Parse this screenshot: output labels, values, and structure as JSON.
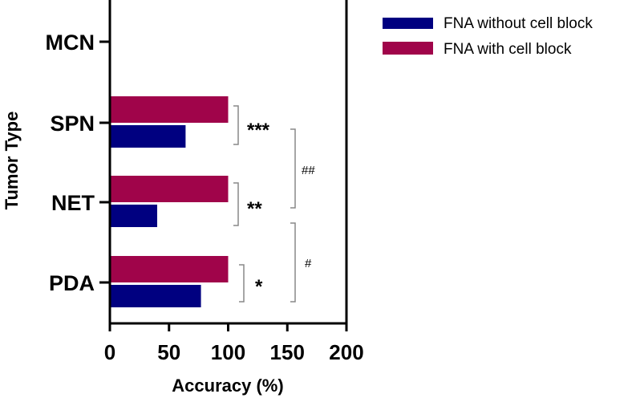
{
  "chart_data": {
    "type": "bar",
    "orientation": "horizontal",
    "categories": [
      "MCN",
      "SPN",
      "NET",
      "PDA"
    ],
    "series": [
      {
        "name": "FNA without cell block",
        "color": "#000080",
        "values": [
          null,
          64,
          40,
          77
        ]
      },
      {
        "name": "FNA with cell block",
        "color": "#A0044A",
        "values": [
          null,
          100,
          100,
          100
        ]
      }
    ],
    "xlabel": "Accuracy (%)",
    "ylabel": "Tumor Type",
    "xlim": [
      0,
      200
    ],
    "xticks": [
      "0",
      "50",
      "100",
      "150",
      "200"
    ],
    "legend_position": "top-right",
    "annotations": {
      "within_group": [
        {
          "category": "SPN",
          "label": "***"
        },
        {
          "category": "NET",
          "label": "**"
        },
        {
          "category": "PDA",
          "label": "*"
        }
      ],
      "between_group": [
        {
          "from": "SPN",
          "to": "NET",
          "label": "##"
        },
        {
          "from": "NET",
          "to": "PDA",
          "label": "#"
        }
      ]
    }
  }
}
